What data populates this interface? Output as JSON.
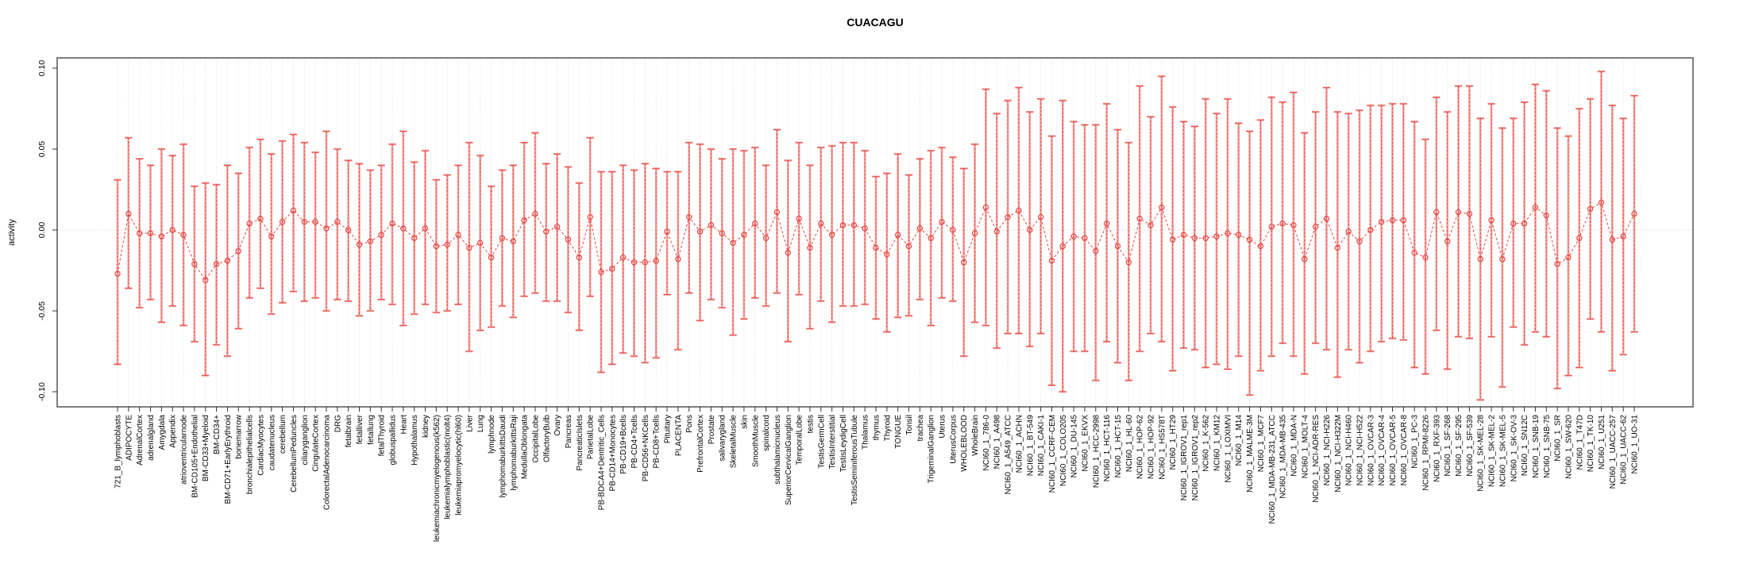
{
  "title": "CUACAGU",
  "chart_data": {
    "type": "scatter",
    "title": "CUACAGU",
    "xlabel": "",
    "ylabel": "activity",
    "ylim": [
      -0.1,
      0.1
    ],
    "yticks": [
      0.1,
      0.05,
      0.0,
      -0.05,
      -0.1
    ],
    "ytick_labels": [
      "0.10",
      "0.05",
      "0.00",
      "-0.05",
      "-0.10"
    ],
    "grid": "vertical-dotted",
    "zero_line": true,
    "legend": "none",
    "point_style": "open-circle-with-error-bars",
    "line_style": "dashed",
    "point_color": "#e8423e",
    "bar_color": "#f2a09a",
    "categories": [
      "721_B_lymphoblasts",
      "ADIPOCYTE",
      "AdrenalCortex",
      "adrenalgland",
      "Amygdala",
      "Appendix",
      "atrioventricularnode",
      "BM-CD105+Endothelial",
      "BM-CD33+Myeloid",
      "BM-CD34+",
      "BM-CD71+EarlyErythroid",
      "bonemarrow",
      "bronchialepithelialcells",
      "CardiacMyocytes",
      "caudatenucleus",
      "cerebellum",
      "CerebellumPeduncles",
      "ciliaryganglion",
      "CingulateCortex",
      "ColorectalAdenocarcinoma",
      "DRG",
      "fetalbrain",
      "fetalliver",
      "fetallung",
      "fetalThyroid",
      "globuspallidus",
      "Heart",
      "Hypothalamus",
      "kidney",
      "leukemiachronicmyelogenous(k562)",
      "leukemialymphoblastic(molt4)",
      "leukemiapromyelocytic(hl60)",
      "Liver",
      "Lung",
      "lymphnode",
      "lymphomaburkittsDaudi",
      "lymphomaburkittsRaji",
      "MedullaOblongata",
      "OccipitalLobe",
      "OlfactoryBulb",
      "Ovary",
      "Pancreas",
      "PancreaticIslets",
      "ParietalLobe",
      "PB-BDCA4+Dentritic_Cells",
      "PB-CD14+Monocytes",
      "PB-CD19+Bcells",
      "PB-CD4+Tcells",
      "PB-CD56+NKCells",
      "PB-CD8+Tcells",
      "Pituitary",
      "PLACENTA",
      "Pons",
      "PrefrontalCortex",
      "Prostate",
      "salivarygland",
      "SkeletalMuscle",
      "skin",
      "SmoothMuscle",
      "spinalcord",
      "subthalamicnucleus",
      "SuperiorCervicalGanglion",
      "TemporalLobe",
      "testis",
      "TestisGermCell",
      "TestisInterstitial",
      "TestisLeydigCell",
      "TestisSeminiferousTubule",
      "Thalamus",
      "thymus",
      "Thyroid",
      "TONGUE",
      "Tonsil",
      "trachea",
      "TrigeminalGanglion",
      "Uterus",
      "UterusCorpus",
      "WHOLEBLOOD",
      "WholeBrain",
      "NCI60_1_786-0",
      "NCI60_1_A498",
      "NCI60_1_A549_ATCC",
      "NCI60_1_ACHN",
      "NCI60_1_BT-549",
      "NCI60_1_CAKI-1",
      "NCI60_1_CCRF-CEM",
      "NCI60_1_COLO205",
      "NCI60_1_DU-145",
      "NCI60_1_EKVX",
      "NCI60_1_HCC-2998",
      "NCI60_1_HCT-116",
      "NCI60_1_HCT-15",
      "NCI60_1_HL-60",
      "NCI60_1_HOP-62",
      "NCI60_1_HOP-92",
      "NCI60_1_HS578T",
      "NCI60_1_HT29",
      "NCI60_1_IGROV1_rep1",
      "NCI60_1_IGROV1_rep2",
      "NCI60_1_K-562",
      "NCI60_1_KM12",
      "NCI60_1_LOXIMVI",
      "NCI60_1_M14",
      "NCI60_1_MALME-3M",
      "NCI60_1_MCF7",
      "NCI60_1_MDA-MB-231_ATCC",
      "NCI60_1_MDA-MB-435",
      "NCI60_1_MDA-N",
      "NCI60_1_MOLT-4",
      "NCI60_1_NCI-ADR-RES",
      "NCI60_1_NCI-H226",
      "NCI60_1_NCI-H322M",
      "NCI60_1_NCI-H460",
      "NCI60_1_NCI-H522",
      "NCI60_1_OVCAR-3",
      "NCI60_1_OVCAR-4",
      "NCI60_1_OVCAR-5",
      "NCI60_1_OVCAR-8",
      "NCI60_1_PC-3",
      "NCI60_1_RPMI-8226",
      "NCI60_1_RXF-393",
      "NCI60_1_SF-268",
      "NCI60_1_SF-295",
      "NCI60_1_SF-539",
      "NCI60_1_SK-MEL-28",
      "NCI60_1_SK-MEL-2",
      "NCI60_1_SK-MEL-5",
      "NCI60_1_SK-OV-3",
      "NCI60_1_SN12C",
      "NCI60_1_SNB-19",
      "NCI60_1_SNB-75",
      "NCI60_1_SR",
      "NCI60_1_SW-620",
      "NCI60_1_T47D",
      "NCI60_1_TK-10",
      "NCI60_1_U251",
      "NCI60_1_UACC-257",
      "NCI60_1_UACC-62",
      "NCI60_1_UO-31"
    ],
    "series": [
      {
        "name": "activity",
        "values": [
          -0.027,
          0.01,
          -0.002,
          -0.002,
          -0.004,
          0.0,
          -0.003,
          -0.021,
          -0.031,
          -0.021,
          -0.019,
          -0.013,
          0.004,
          0.007,
          -0.004,
          0.005,
          0.012,
          0.005,
          0.005,
          0.001,
          0.005,
          0.0,
          -0.009,
          -0.007,
          -0.003,
          0.004,
          0.001,
          -0.005,
          0.001,
          -0.01,
          -0.009,
          -0.003,
          -0.011,
          -0.008,
          -0.017,
          -0.005,
          -0.007,
          0.006,
          0.01,
          -0.001,
          0.002,
          -0.006,
          -0.017,
          0.008,
          -0.026,
          -0.024,
          -0.017,
          -0.02,
          -0.02,
          -0.019,
          -0.001,
          -0.018,
          0.008,
          -0.001,
          0.003,
          -0.002,
          -0.008,
          -0.003,
          0.004,
          -0.005,
          0.011,
          -0.014,
          0.007,
          -0.011,
          0.004,
          -0.003,
          0.003,
          0.003,
          0.001,
          -0.011,
          -0.015,
          -0.003,
          -0.01,
          0.001,
          -0.005,
          0.005,
          0.0,
          -0.02,
          -0.002,
          0.014,
          -0.001,
          0.008,
          0.012,
          0.0,
          0.008,
          -0.019,
          -0.01,
          -0.004,
          -0.005,
          -0.013,
          0.004,
          -0.01,
          -0.02,
          0.007,
          0.003,
          0.014,
          -0.006,
          -0.003,
          -0.005,
          -0.005,
          -0.004,
          -0.002,
          -0.003,
          -0.006,
          -0.01,
          0.002,
          0.004,
          0.003,
          -0.018,
          0.002,
          0.007,
          -0.011,
          -0.001,
          -0.007,
          0.0,
          0.005,
          0.006,
          0.006,
          -0.014,
          -0.017,
          0.011,
          -0.007,
          0.011,
          0.01,
          -0.018,
          0.006,
          -0.018,
          0.004,
          0.004,
          0.014,
          0.009,
          -0.021,
          -0.017,
          -0.005,
          0.013,
          0.017,
          -0.006,
          -0.004,
          0.01
        ],
        "lower": [
          -0.083,
          -0.036,
          -0.048,
          -0.043,
          -0.057,
          -0.047,
          -0.059,
          -0.069,
          -0.09,
          -0.071,
          -0.078,
          -0.061,
          -0.042,
          -0.036,
          -0.052,
          -0.045,
          -0.038,
          -0.044,
          -0.042,
          -0.05,
          -0.043,
          -0.044,
          -0.053,
          -0.05,
          -0.043,
          -0.046,
          -0.059,
          -0.052,
          -0.046,
          -0.051,
          -0.05,
          -0.046,
          -0.075,
          -0.062,
          -0.06,
          -0.047,
          -0.054,
          -0.041,
          -0.039,
          -0.044,
          -0.044,
          -0.051,
          -0.062,
          -0.041,
          -0.088,
          -0.083,
          -0.076,
          -0.078,
          -0.082,
          -0.079,
          -0.04,
          -0.074,
          -0.039,
          -0.056,
          -0.043,
          -0.048,
          -0.065,
          -0.055,
          -0.042,
          -0.047,
          -0.039,
          -0.069,
          -0.04,
          -0.061,
          -0.044,
          -0.057,
          -0.047,
          -0.047,
          -0.046,
          -0.055,
          -0.063,
          -0.054,
          -0.053,
          -0.043,
          -0.059,
          -0.042,
          -0.044,
          -0.078,
          -0.057,
          -0.059,
          -0.073,
          -0.064,
          -0.064,
          -0.072,
          -0.064,
          -0.096,
          -0.1,
          -0.075,
          -0.075,
          -0.093,
          -0.069,
          -0.082,
          -0.093,
          -0.075,
          -0.064,
          -0.069,
          -0.087,
          -0.073,
          -0.074,
          -0.085,
          -0.083,
          -0.086,
          -0.078,
          -0.102,
          -0.087,
          -0.078,
          -0.07,
          -0.078,
          -0.089,
          -0.07,
          -0.074,
          -0.091,
          -0.074,
          -0.082,
          -0.075,
          -0.069,
          -0.067,
          -0.068,
          -0.085,
          -0.089,
          -0.062,
          -0.086,
          -0.066,
          -0.067,
          -0.105,
          -0.066,
          -0.097,
          -0.06,
          -0.071,
          -0.063,
          -0.066,
          -0.098,
          -0.09,
          -0.085,
          -0.055,
          -0.063,
          -0.087,
          -0.077,
          -0.063
        ],
        "upper": [
          0.031,
          0.057,
          0.044,
          0.04,
          0.05,
          0.046,
          0.053,
          0.027,
          0.029,
          0.028,
          0.04,
          0.035,
          0.051,
          0.056,
          0.047,
          0.055,
          0.059,
          0.054,
          0.048,
          0.061,
          0.05,
          0.043,
          0.041,
          0.037,
          0.04,
          0.053,
          0.061,
          0.042,
          0.049,
          0.031,
          0.034,
          0.04,
          0.054,
          0.046,
          0.027,
          0.037,
          0.04,
          0.054,
          0.06,
          0.041,
          0.047,
          0.039,
          0.029,
          0.057,
          0.036,
          0.036,
          0.04,
          0.037,
          0.041,
          0.038,
          0.036,
          0.036,
          0.054,
          0.053,
          0.05,
          0.044,
          0.05,
          0.049,
          0.051,
          0.04,
          0.062,
          0.043,
          0.054,
          0.04,
          0.051,
          0.052,
          0.054,
          0.054,
          0.049,
          0.033,
          0.035,
          0.047,
          0.034,
          0.044,
          0.049,
          0.051,
          0.045,
          0.038,
          0.053,
          0.087,
          0.072,
          0.08,
          0.088,
          0.073,
          0.081,
          0.058,
          0.08,
          0.067,
          0.065,
          0.065,
          0.078,
          0.062,
          0.054,
          0.089,
          0.07,
          0.095,
          0.076,
          0.067,
          0.064,
          0.081,
          0.072,
          0.081,
          0.066,
          0.061,
          0.068,
          0.082,
          0.079,
          0.085,
          0.06,
          0.073,
          0.088,
          0.073,
          0.072,
          0.074,
          0.077,
          0.077,
          0.078,
          0.078,
          0.067,
          0.056,
          0.082,
          0.073,
          0.089,
          0.089,
          0.069,
          0.078,
          0.063,
          0.069,
          0.079,
          0.09,
          0.086,
          0.063,
          0.058,
          0.075,
          0.081,
          0.098,
          0.077,
          0.069,
          0.083
        ]
      }
    ]
  }
}
